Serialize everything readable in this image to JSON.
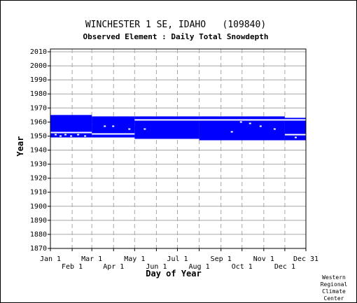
{
  "chart_data": {
    "type": "heatmap",
    "title": "WINCHESTER 1 SE, IDAHO   (109840)",
    "subtitle": "Observed Element : Daily Total Snowdepth",
    "xlabel": "Day of Year",
    "ylabel": "Year",
    "xlim": [
      1,
      365
    ],
    "ylim": [
      1870,
      2012
    ],
    "x_ticks_top_row": [
      {
        "label": "Jan 1",
        "day": 1
      },
      {
        "label": "Mar 1",
        "day": 60
      },
      {
        "label": "May 1",
        "day": 121
      },
      {
        "label": "Jul 1",
        "day": 182
      },
      {
        "label": "Sep 1",
        "day": 244
      },
      {
        "label": "Nov 1",
        "day": 305
      },
      {
        "label": "Dec 31",
        "day": 365
      }
    ],
    "x_ticks_bottom_row": [
      {
        "label": "Feb 1",
        "day": 32
      },
      {
        "label": "Apr 1",
        "day": 91
      },
      {
        "label": "Jun 1",
        "day": 152
      },
      {
        "label": "Aug 1",
        "day": 213
      },
      {
        "label": "Oct 1",
        "day": 274
      },
      {
        "label": "Dec 1",
        "day": 335
      }
    ],
    "y_ticks": [
      1870,
      1880,
      1890,
      1900,
      1910,
      1920,
      1930,
      1940,
      1950,
      1960,
      1970,
      1980,
      1990,
      2000,
      2010
    ],
    "grid": true,
    "data_color": "#0000ff",
    "period_of_record": {
      "start_year": 1948,
      "end_year": 1965
    },
    "coverage_bands": [
      {
        "day_start": 1,
        "day_end": 60,
        "year_start": 1949,
        "year_end": 1965
      },
      {
        "day_start": 60,
        "day_end": 121,
        "year_start": 1949,
        "year_end": 1964
      },
      {
        "day_start": 121,
        "day_end": 213,
        "year_start": 1948,
        "year_end": 1964
      },
      {
        "day_start": 213,
        "day_end": 335,
        "year_start": 1947,
        "year_end": 1964
      },
      {
        "day_start": 335,
        "day_end": 365,
        "year_start": 1947,
        "year_end": 1963
      }
    ],
    "missing_gaps": [
      {
        "day_start": 1,
        "day_end": 60,
        "year": 1952.5
      },
      {
        "day_start": 60,
        "day_end": 121,
        "year": 1951.5
      },
      {
        "day_start": 121,
        "day_end": 365,
        "year": 1961.5
      },
      {
        "day_start": 335,
        "day_end": 365,
        "year": 1951
      }
    ],
    "scattered_missing_days": [
      {
        "day": 8,
        "year": 1951
      },
      {
        "day": 15,
        "year": 1950
      },
      {
        "day": 22,
        "year": 1951
      },
      {
        "day": 30,
        "year": 1950
      },
      {
        "day": 40,
        "year": 1951
      },
      {
        "day": 50,
        "year": 1950
      },
      {
        "day": 78,
        "year": 1957
      },
      {
        "day": 90,
        "year": 1957
      },
      {
        "day": 113,
        "year": 1955
      },
      {
        "day": 135,
        "year": 1955
      },
      {
        "day": 259,
        "year": 1953
      },
      {
        "day": 272,
        "year": 1960
      },
      {
        "day": 285,
        "year": 1959
      },
      {
        "day": 300,
        "year": 1957
      },
      {
        "day": 320,
        "year": 1955
      },
      {
        "day": 350,
        "year": 1949
      }
    ]
  },
  "credit": [
    "Western",
    "Regional",
    "Climate",
    "Center"
  ]
}
